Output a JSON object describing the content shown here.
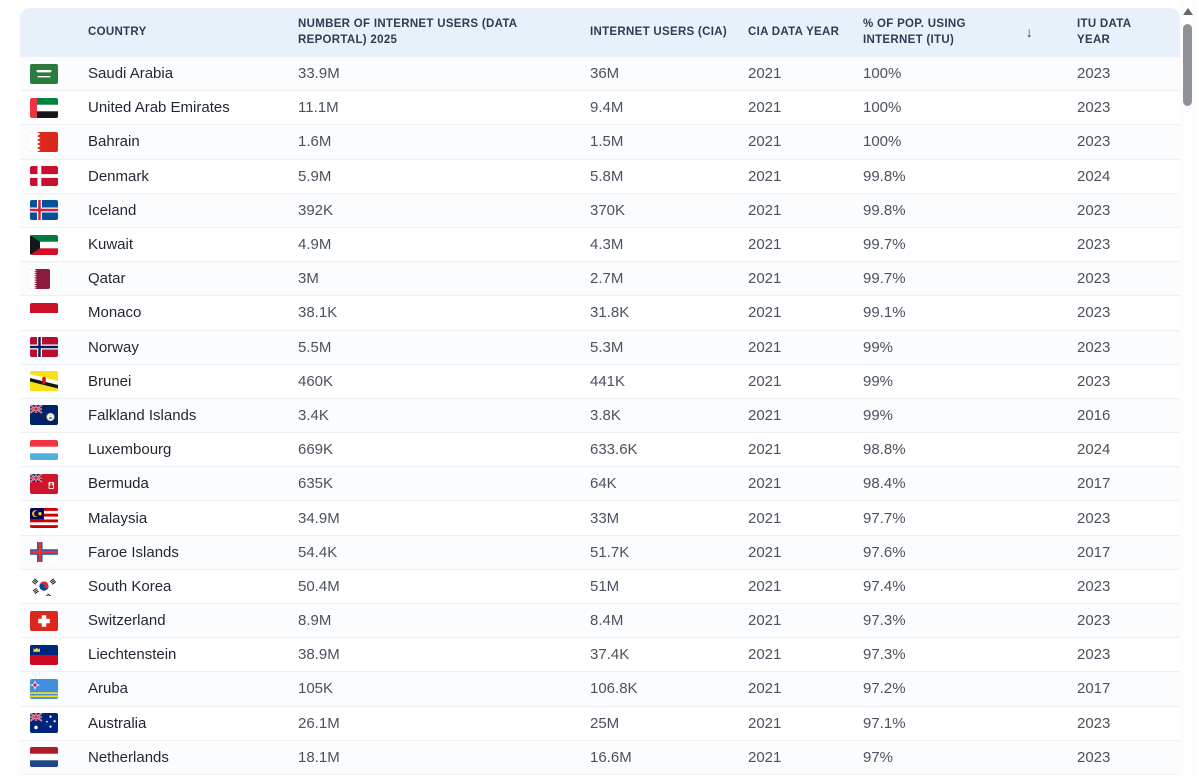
{
  "table": {
    "sort_icon": "↓",
    "columns": [
      {
        "key": "country",
        "label": "COUNTRY"
      },
      {
        "key": "users_datareportal",
        "label": "NUMBER OF INTERNET USERS (DATA REPORTAL) 2025"
      },
      {
        "key": "users_cia",
        "label": "INTERNET USERS (CIA)"
      },
      {
        "key": "cia_year",
        "label": "CIA DATA YEAR"
      },
      {
        "key": "itu_pct",
        "label": "% OF POP. USING INTERNET (ITU)",
        "sorted": "desc"
      },
      {
        "key": "itu_year",
        "label": "ITU DATA YEAR"
      }
    ],
    "rows": [
      {
        "flag": "sa",
        "country": "Saudi Arabia",
        "users_datareportal": "33.9M",
        "users_cia": "36M",
        "cia_year": "2021",
        "itu_pct": "100%",
        "itu_year": "2023"
      },
      {
        "flag": "ae",
        "country": "United Arab Emirates",
        "users_datareportal": "11.1M",
        "users_cia": "9.4M",
        "cia_year": "2021",
        "itu_pct": "100%",
        "itu_year": "2023"
      },
      {
        "flag": "bh",
        "country": "Bahrain",
        "users_datareportal": "1.6M",
        "users_cia": "1.5M",
        "cia_year": "2021",
        "itu_pct": "100%",
        "itu_year": "2023"
      },
      {
        "flag": "dk",
        "country": "Denmark",
        "users_datareportal": "5.9M",
        "users_cia": "5.8M",
        "cia_year": "2021",
        "itu_pct": "99.8%",
        "itu_year": "2024"
      },
      {
        "flag": "is",
        "country": "Iceland",
        "users_datareportal": "392K",
        "users_cia": "370K",
        "cia_year": "2021",
        "itu_pct": "99.8%",
        "itu_year": "2023"
      },
      {
        "flag": "kw",
        "country": "Kuwait",
        "users_datareportal": "4.9M",
        "users_cia": "4.3M",
        "cia_year": "2021",
        "itu_pct": "99.7%",
        "itu_year": "2023"
      },
      {
        "flag": "qa",
        "country": "Qatar",
        "users_datareportal": "3M",
        "users_cia": "2.7M",
        "cia_year": "2021",
        "itu_pct": "99.7%",
        "itu_year": "2023"
      },
      {
        "flag": "mc",
        "country": "Monaco",
        "users_datareportal": "38.1K",
        "users_cia": "31.8K",
        "cia_year": "2021",
        "itu_pct": "99.1%",
        "itu_year": "2023"
      },
      {
        "flag": "no",
        "country": "Norway",
        "users_datareportal": "5.5M",
        "users_cia": "5.3M",
        "cia_year": "2021",
        "itu_pct": "99%",
        "itu_year": "2023"
      },
      {
        "flag": "bn",
        "country": "Brunei",
        "users_datareportal": "460K",
        "users_cia": "441K",
        "cia_year": "2021",
        "itu_pct": "99%",
        "itu_year": "2023"
      },
      {
        "flag": "fk",
        "country": "Falkland Islands",
        "users_datareportal": "3.4K",
        "users_cia": "3.8K",
        "cia_year": "2021",
        "itu_pct": "99%",
        "itu_year": "2016"
      },
      {
        "flag": "lu",
        "country": "Luxembourg",
        "users_datareportal": "669K",
        "users_cia": "633.6K",
        "cia_year": "2021",
        "itu_pct": "98.8%",
        "itu_year": "2024"
      },
      {
        "flag": "bm",
        "country": "Bermuda",
        "users_datareportal": "635K",
        "users_cia": "64K",
        "cia_year": "2021",
        "itu_pct": "98.4%",
        "itu_year": "2017"
      },
      {
        "flag": "my",
        "country": "Malaysia",
        "users_datareportal": "34.9M",
        "users_cia": "33M",
        "cia_year": "2021",
        "itu_pct": "97.7%",
        "itu_year": "2023"
      },
      {
        "flag": "fo",
        "country": "Faroe Islands",
        "users_datareportal": "54.4K",
        "users_cia": "51.7K",
        "cia_year": "2021",
        "itu_pct": "97.6%",
        "itu_year": "2017"
      },
      {
        "flag": "kr",
        "country": "South Korea",
        "users_datareportal": "50.4M",
        "users_cia": "51M",
        "cia_year": "2021",
        "itu_pct": "97.4%",
        "itu_year": "2023"
      },
      {
        "flag": "ch",
        "country": "Switzerland",
        "users_datareportal": "8.9M",
        "users_cia": "8.4M",
        "cia_year": "2021",
        "itu_pct": "97.3%",
        "itu_year": "2023"
      },
      {
        "flag": "li",
        "country": "Liechtenstein",
        "users_datareportal": "38.9M",
        "users_cia": "37.4K",
        "cia_year": "2021",
        "itu_pct": "97.3%",
        "itu_year": "2023"
      },
      {
        "flag": "aw",
        "country": "Aruba",
        "users_datareportal": "105K",
        "users_cia": "106.8K",
        "cia_year": "2021",
        "itu_pct": "97.2%",
        "itu_year": "2017"
      },
      {
        "flag": "au",
        "country": "Australia",
        "users_datareportal": "26.1M",
        "users_cia": "25M",
        "cia_year": "2021",
        "itu_pct": "97.1%",
        "itu_year": "2023"
      },
      {
        "flag": "nl",
        "country": "Netherlands",
        "users_datareportal": "18.1M",
        "users_cia": "16.6M",
        "cia_year": "2021",
        "itu_pct": "97%",
        "itu_year": "2023"
      }
    ]
  },
  "colors": {
    "header_bg": "#e8f1f9",
    "header_text": "#2e3c52",
    "row_border": "#eef1f4",
    "country_text": "#1f2732",
    "value_text": "#49525e",
    "scrollbar_thumb": "#8f9399"
  }
}
